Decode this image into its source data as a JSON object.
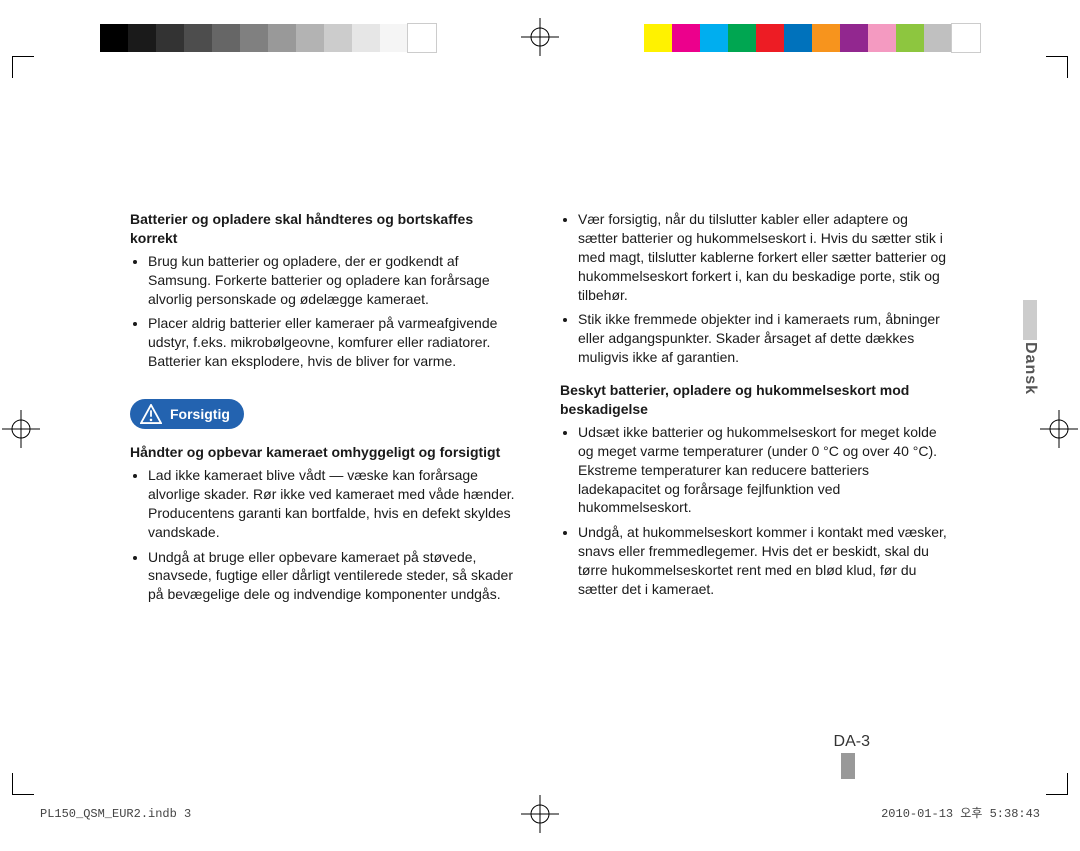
{
  "colorbars": {
    "left": [
      "#000000",
      "#1a1a1a",
      "#333333",
      "#4d4d4d",
      "#666666",
      "#808080",
      "#999999",
      "#b3b3b3",
      "#cccccc",
      "#e6e6e6",
      "#f5f5f5",
      "#ffffff"
    ],
    "right": [
      "#fff200",
      "#ec008c",
      "#00aeef",
      "#00a651",
      "#ed1c24",
      "#0072bc",
      "#f7941d",
      "#92278f",
      "#f49ac1",
      "#8dc63f",
      "#c0c0c0",
      "#ffffff"
    ]
  },
  "content": {
    "left": {
      "sec1_head": "Batterier og opladere skal håndteres og bortskaffes korrekt",
      "sec1_b1": "Brug kun batterier og opladere, der er godkendt af Samsung. Forkerte batterier og opladere kan forårsage alvorlig personskade og ødelægge kameraet.",
      "sec1_b2": "Placer aldrig batterier eller kameraer på varmeafgivende udstyr, f.eks. mikrobølgeovne, komfurer eller radiatorer. Batterier kan eksplodere, hvis de bliver for varme.",
      "caution_label": "Forsigtig",
      "sec2_head": "Håndter og opbevar kameraet omhyggeligt og forsigtigt",
      "sec2_b1": "Lad ikke kameraet blive vådt — væske kan forårsage alvorlige skader. Rør ikke ved kameraet med våde hænder. Producentens garanti kan bortfalde, hvis en defekt skyldes vandskade.",
      "sec2_b2": "Undgå at bruge eller opbevare kameraet på støvede, snavsede, fugtige eller dårligt ventilerede steder, så skader på bevægelige dele og indvendige komponenter undgås."
    },
    "right": {
      "top_b1": "Vær forsigtig, når du tilslutter kabler eller adaptere og sætter batterier og hukommelseskort i. Hvis du sætter stik i med magt, tilslutter kablerne forkert eller sætter batterier og hukommelseskort forkert i, kan du beskadige porte, stik og tilbehør.",
      "top_b2": "Stik ikke fremmede objekter ind i kameraets rum, åbninger eller adgangspunkter. Skader årsaget af dette dækkes muligvis ikke af garantien.",
      "sec3_head": "Beskyt batterier, opladere og hukommelseskort mod beskadigelse",
      "sec3_b1": "Udsæt ikke batterier og hukommelseskort for meget kolde og meget varme temperaturer (under 0 °C og over 40 °C). Ekstreme temperaturer kan reducere batteriers ladekapacitet og forårsage fejlfunktion ved hukommelseskort.",
      "sec3_b2": "Undgå, at hukommelseskort kommer i kontakt med væsker, snavs eller fremmedlegemer. Hvis det er beskidt, skal du tørre hukommelseskortet rent med en blød klud, før du sætter det i kameraet."
    }
  },
  "language_tab": "Dansk",
  "page_number": "DA-3",
  "footer": {
    "left": "PL150_QSM_EUR2.indb   3",
    "right": "2010-01-13   오후 5:38:43"
  }
}
